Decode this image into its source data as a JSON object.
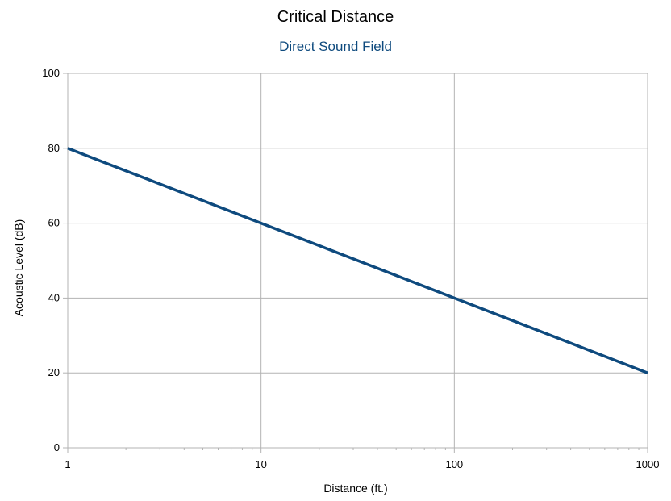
{
  "chart_data": {
    "type": "line",
    "title": "Critical Distance",
    "subtitle": "Direct Sound Field",
    "xlabel": "Distance (ft.)",
    "ylabel": "Acoustic Level (dB)",
    "x_scale": "log",
    "xlim": [
      1,
      1000
    ],
    "ylim": [
      0,
      100
    ],
    "x_ticks": [
      1,
      10,
      100,
      1000
    ],
    "x_tick_labels": [
      "1",
      "10",
      "100",
      "1000"
    ],
    "y_ticks": [
      0,
      20,
      40,
      60,
      80,
      100
    ],
    "y_tick_labels": [
      "0",
      "20",
      "40",
      "60",
      "80",
      "100"
    ],
    "grid": true,
    "legend": "none",
    "series": [
      {
        "color": "#0e4a7e",
        "x": [
          1,
          10,
          100,
          1000
        ],
        "y": [
          80,
          60,
          40,
          20
        ]
      }
    ]
  },
  "colors": {
    "series_line": "#0e4a7e",
    "subtitle": "#0e4a7e",
    "grid": "#b3b3b3",
    "axis": "#b3b3b3"
  }
}
